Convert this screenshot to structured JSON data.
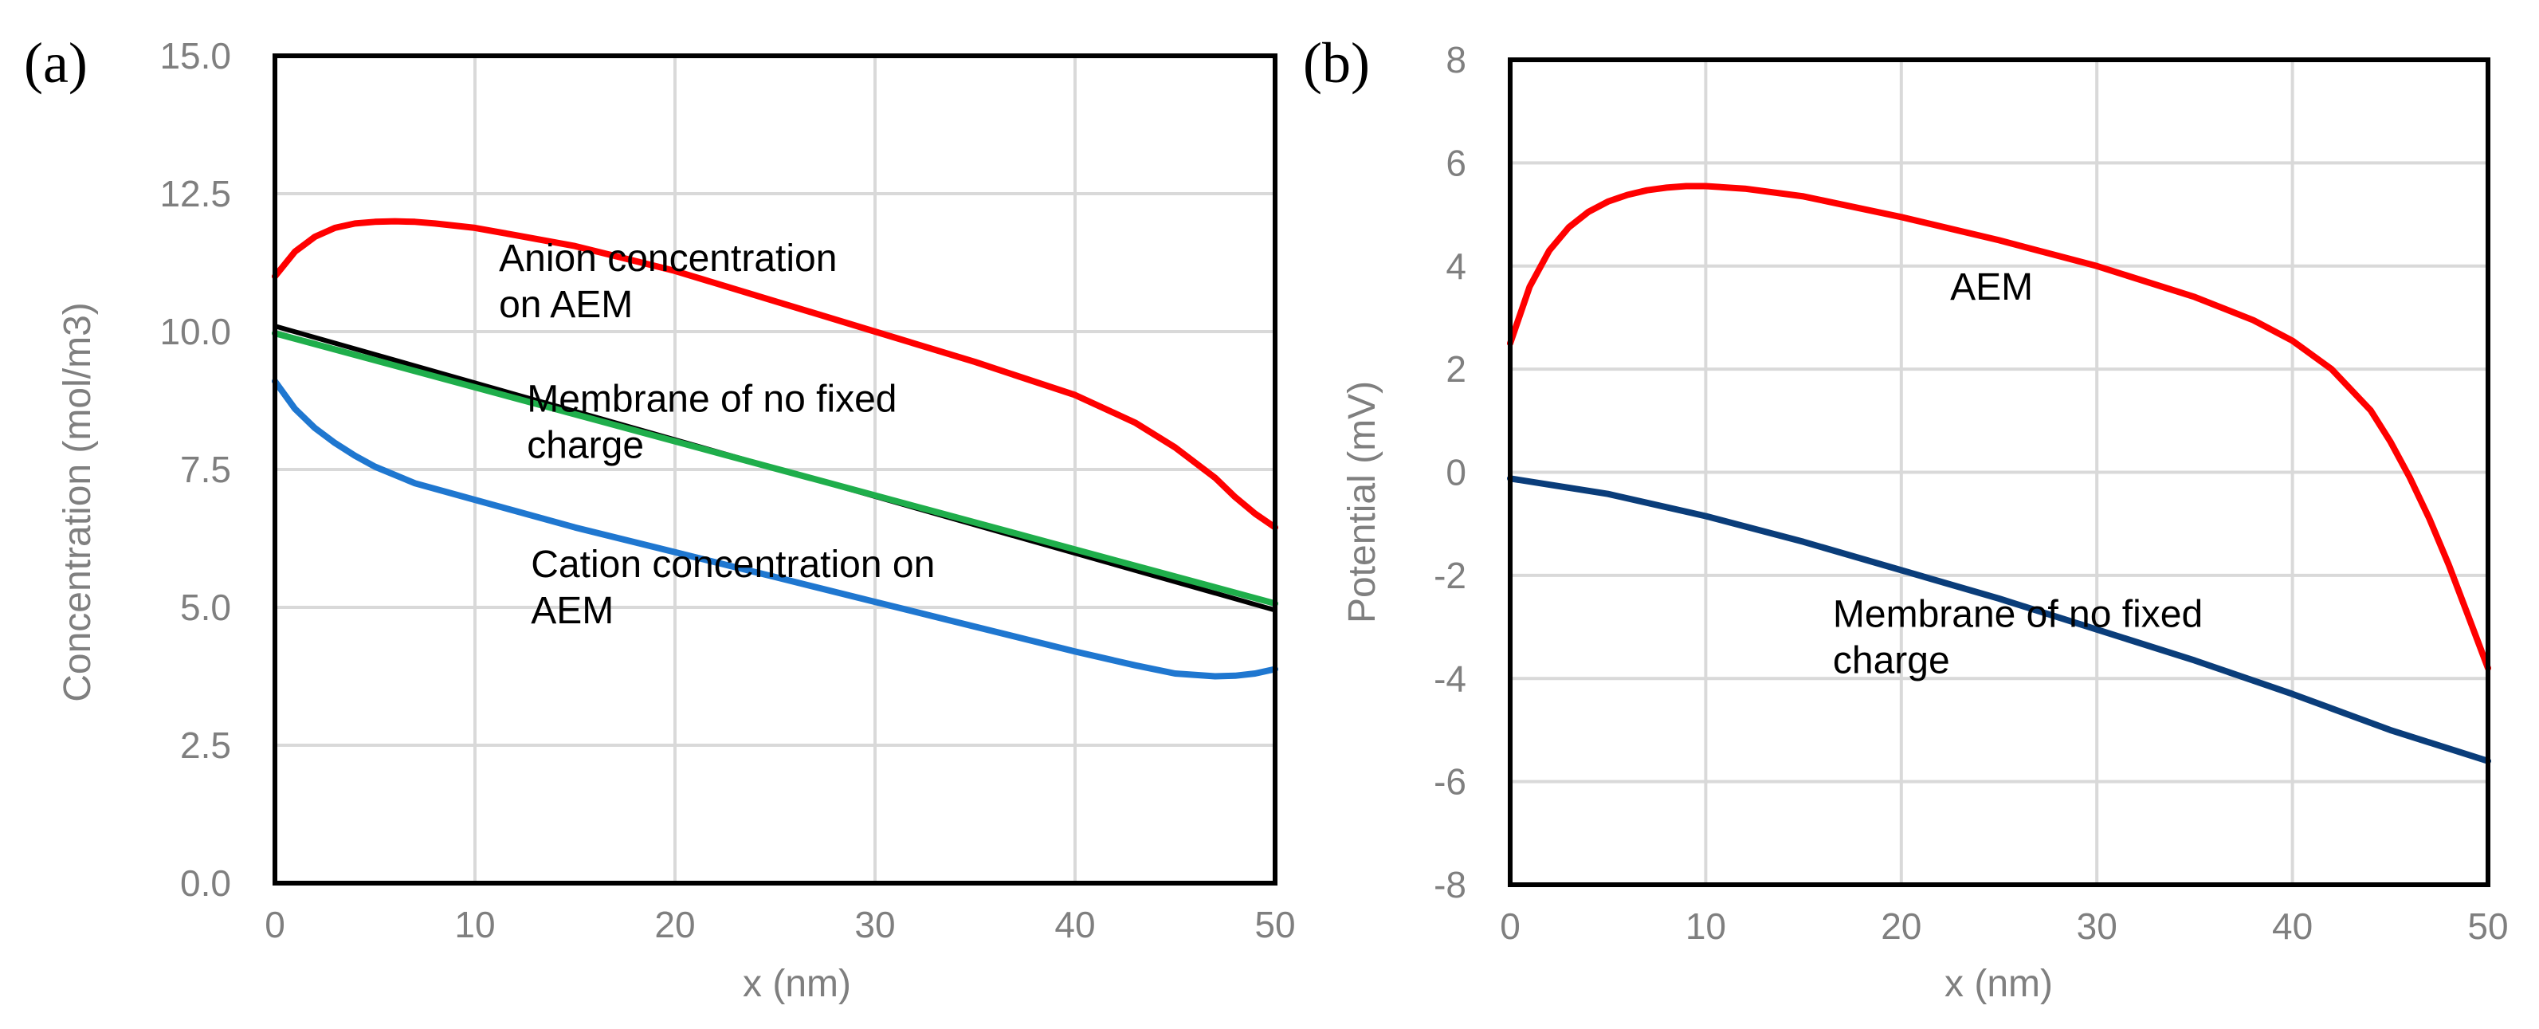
{
  "chart_data": [
    {
      "type": "line",
      "panel_label": "(a)",
      "xlabel": "x (nm)",
      "ylabel": "Concentration (mol/m3)",
      "xlim": [
        0,
        50
      ],
      "ylim": [
        0,
        15
      ],
      "x_ticks": [
        "0",
        "10",
        "20",
        "30",
        "40",
        "50"
      ],
      "y_ticks": [
        "0.0",
        "2.5",
        "5.0",
        "7.5",
        "10.0",
        "12.5",
        "15.0"
      ],
      "grid": true,
      "series": [
        {
          "name": "Anion concentration on AEM",
          "color": "#ff0000",
          "x": [
            0,
            1,
            2,
            3,
            4,
            5,
            6,
            7,
            8,
            10,
            12,
            15,
            20,
            25,
            30,
            35,
            40,
            43,
            45,
            47,
            48,
            49,
            50
          ],
          "y": [
            11.0,
            11.45,
            11.72,
            11.88,
            11.96,
            11.99,
            12.0,
            11.99,
            11.96,
            11.88,
            11.75,
            11.55,
            11.1,
            10.55,
            10.0,
            9.45,
            8.85,
            8.35,
            7.9,
            7.35,
            7.0,
            6.7,
            6.45
          ]
        },
        {
          "name": "Membrane of no fixed charge",
          "color": "#000000",
          "x": [
            0,
            50
          ],
          "y": [
            10.1,
            4.95
          ]
        },
        {
          "name": "Membrane of no fixed charge",
          "color": "#1fae4b",
          "x": [
            0,
            50
          ],
          "y": [
            9.97,
            5.07
          ]
        },
        {
          "name": "Cation concentration on AEM",
          "color": "#1f77d0",
          "x": [
            0,
            1,
            2,
            3,
            4,
            5,
            7,
            10,
            15,
            20,
            25,
            30,
            35,
            40,
            43,
            45,
            47,
            48,
            49,
            50
          ],
          "y": [
            9.1,
            8.6,
            8.25,
            7.98,
            7.75,
            7.55,
            7.25,
            6.95,
            6.45,
            6.0,
            5.55,
            5.1,
            4.65,
            4.2,
            3.95,
            3.8,
            3.75,
            3.76,
            3.8,
            3.88
          ]
        }
      ],
      "annotations": [
        {
          "lines": [
            "Anion concentration",
            "on AEM"
          ],
          "x": 11.2,
          "y": 11.1
        },
        {
          "lines": [
            "Membrane of no fixed",
            "charge"
          ],
          "x": 12.6,
          "y": 8.55
        },
        {
          "lines": [
            "Cation concentration on",
            "AEM"
          ],
          "x": 12.8,
          "y": 5.55
        }
      ]
    },
    {
      "type": "line",
      "panel_label": "(b)",
      "xlabel": "x (nm)",
      "ylabel": "Potential (mV)",
      "xlim": [
        0,
        50
      ],
      "ylim": [
        -8,
        8
      ],
      "x_ticks": [
        "0",
        "10",
        "20",
        "30",
        "40",
        "50"
      ],
      "y_ticks": [
        "-8",
        "-6",
        "-4",
        "-2",
        "0",
        "2",
        "4",
        "6",
        "8"
      ],
      "grid": true,
      "series": [
        {
          "name": "AEM",
          "color": "#ff0000",
          "x": [
            0,
            1,
            2,
            3,
            4,
            5,
            6,
            7,
            8,
            9,
            10,
            12,
            15,
            20,
            25,
            30,
            35,
            38,
            40,
            42,
            44,
            45,
            46,
            47,
            48,
            49,
            50
          ],
          "y": [
            2.5,
            3.6,
            4.3,
            4.75,
            5.05,
            5.25,
            5.38,
            5.47,
            5.52,
            5.55,
            5.55,
            5.5,
            5.35,
            4.95,
            4.5,
            4.0,
            3.4,
            2.95,
            2.55,
            2.0,
            1.2,
            0.6,
            -0.1,
            -0.9,
            -1.8,
            -2.8,
            -3.8
          ]
        },
        {
          "name": "Membrane of no fixed charge",
          "color": "#0a3d7a",
          "x": [
            0,
            5,
            10,
            15,
            20,
            25,
            30,
            35,
            40,
            45,
            50
          ],
          "y": [
            -0.12,
            -0.42,
            -0.85,
            -1.35,
            -1.9,
            -2.45,
            -3.05,
            -3.65,
            -4.3,
            -5.0,
            -5.6
          ]
        }
      ],
      "annotations": [
        {
          "lines": [
            "AEM"
          ],
          "x": 22.5,
          "y": 3.35
        },
        {
          "lines": [
            "Membrane of no fixed",
            "charge"
          ],
          "x": 16.5,
          "y": -3.0
        }
      ]
    }
  ]
}
